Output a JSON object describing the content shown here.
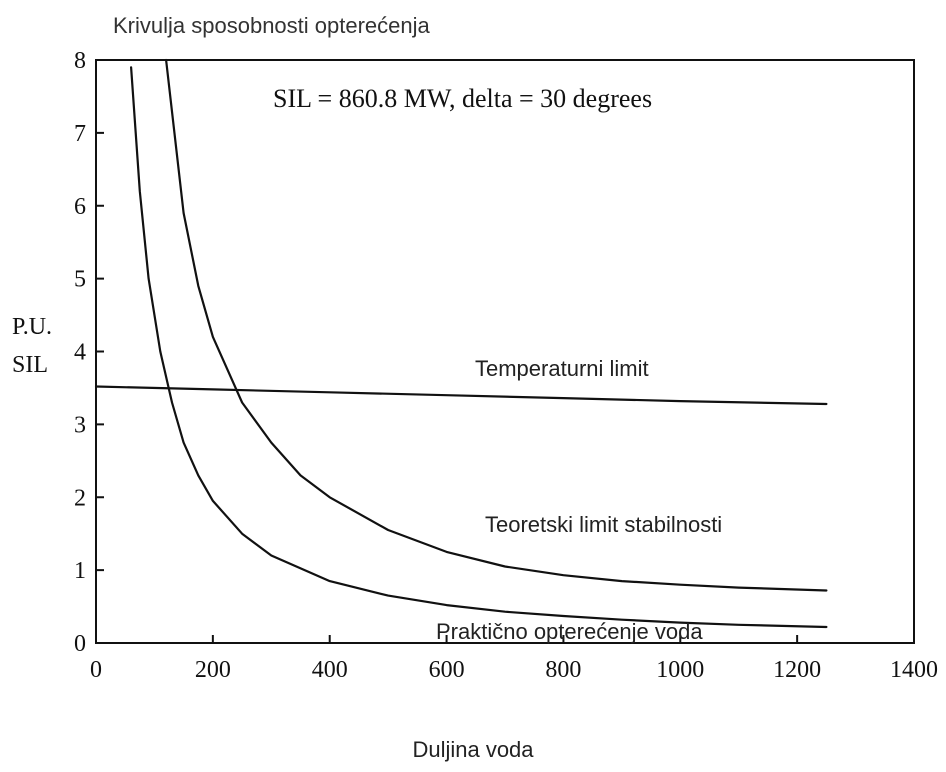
{
  "chart_data": {
    "type": "line",
    "title": "Krivulja sposobnosti opterećenja",
    "annotation": "SIL = 860.8 MW, delta = 30 degrees",
    "xlabel": "Duljina voda",
    "ylabel": "P.U. SIL",
    "ylabel_lines": [
      "P.U.",
      "SIL"
    ],
    "xlim": [
      0,
      1400
    ],
    "ylim": [
      0,
      8
    ],
    "xticks": [
      0,
      200,
      400,
      600,
      800,
      1000,
      1200,
      1400
    ],
    "yticks": [
      0,
      1,
      2,
      3,
      4,
      5,
      6,
      7,
      8
    ],
    "grid": false,
    "legend": "none",
    "series": [
      {
        "name": "Temperaturni limit",
        "color": "#111111",
        "x": [
          0,
          200,
          400,
          600,
          800,
          1000,
          1250
        ],
        "y": [
          3.52,
          3.48,
          3.44,
          3.4,
          3.36,
          3.32,
          3.28
        ]
      },
      {
        "name": "Teoretski limit stabilnosti",
        "color": "#111111",
        "x": [
          120,
          150,
          175,
          200,
          250,
          300,
          350,
          400,
          500,
          600,
          700,
          800,
          900,
          1000,
          1100,
          1250
        ],
        "y": [
          8.0,
          5.9,
          4.9,
          4.2,
          3.3,
          2.75,
          2.3,
          2.0,
          1.55,
          1.25,
          1.05,
          0.93,
          0.85,
          0.8,
          0.76,
          0.72
        ]
      },
      {
        "name": "Praktično opterećenje voda",
        "color": "#111111",
        "x": [
          60,
          75,
          90,
          110,
          130,
          150,
          175,
          200,
          250,
          300,
          400,
          500,
          600,
          700,
          800,
          900,
          1000,
          1100,
          1250
        ],
        "y": [
          7.9,
          6.2,
          5.0,
          4.0,
          3.3,
          2.75,
          2.3,
          1.95,
          1.5,
          1.2,
          0.85,
          0.65,
          0.52,
          0.43,
          0.37,
          0.32,
          0.28,
          0.25,
          0.22
        ]
      }
    ]
  }
}
